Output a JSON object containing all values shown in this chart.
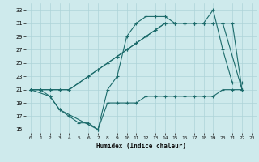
{
  "xlabel": "Humidex (Indice chaleur)",
  "bg_color": "#ceeaec",
  "grid_color": "#aed4d8",
  "line_color": "#1c6b6b",
  "xlim": [
    -0.5,
    23.5
  ],
  "ylim": [
    14.5,
    34.0
  ],
  "xticks": [
    0,
    1,
    2,
    3,
    4,
    5,
    6,
    7,
    8,
    9,
    10,
    11,
    12,
    13,
    14,
    15,
    16,
    17,
    18,
    19,
    20,
    21,
    22,
    23
  ],
  "yticks": [
    15,
    17,
    19,
    21,
    23,
    25,
    27,
    29,
    31,
    33
  ],
  "line1_x": [
    0,
    1,
    2,
    3,
    7,
    8,
    9,
    10,
    11,
    12,
    13,
    14,
    15,
    16,
    17,
    18,
    19,
    20,
    21,
    22
  ],
  "line1_y": [
    21,
    21,
    20,
    18,
    15,
    21,
    23,
    29,
    31,
    32,
    32,
    32,
    31,
    31,
    31,
    31,
    33,
    27,
    22,
    22
  ],
  "line2_x": [
    0,
    1,
    2,
    3,
    4,
    5,
    6,
    7,
    8,
    9,
    10,
    11,
    12,
    13,
    14,
    15,
    16,
    17,
    18,
    19,
    20,
    21,
    22
  ],
  "line2_y": [
    21,
    21,
    21,
    21,
    21,
    22,
    23,
    24,
    25,
    26,
    27,
    28,
    29,
    30,
    31,
    31,
    31,
    31,
    31,
    31,
    31,
    31,
    21
  ],
  "line3_x": [
    0,
    1,
    2,
    3,
    4,
    5,
    6,
    7,
    8,
    9,
    10,
    11,
    12,
    13,
    14,
    15,
    16,
    17,
    18,
    19,
    20,
    22
  ],
  "line3_y": [
    21,
    21,
    21,
    21,
    21,
    22,
    23,
    24,
    25,
    26,
    27,
    28,
    29,
    30,
    31,
    31,
    31,
    31,
    31,
    31,
    31,
    21
  ],
  "line4_x": [
    0,
    2,
    3,
    4,
    5,
    6,
    7,
    8,
    9,
    10,
    11,
    12,
    13,
    14,
    15,
    16,
    17,
    18,
    19,
    20,
    21,
    22
  ],
  "line4_y": [
    21,
    20,
    18,
    17,
    16,
    16,
    15,
    19,
    19,
    19,
    19,
    20,
    20,
    20,
    20,
    20,
    20,
    20,
    20,
    21,
    21,
    21
  ]
}
